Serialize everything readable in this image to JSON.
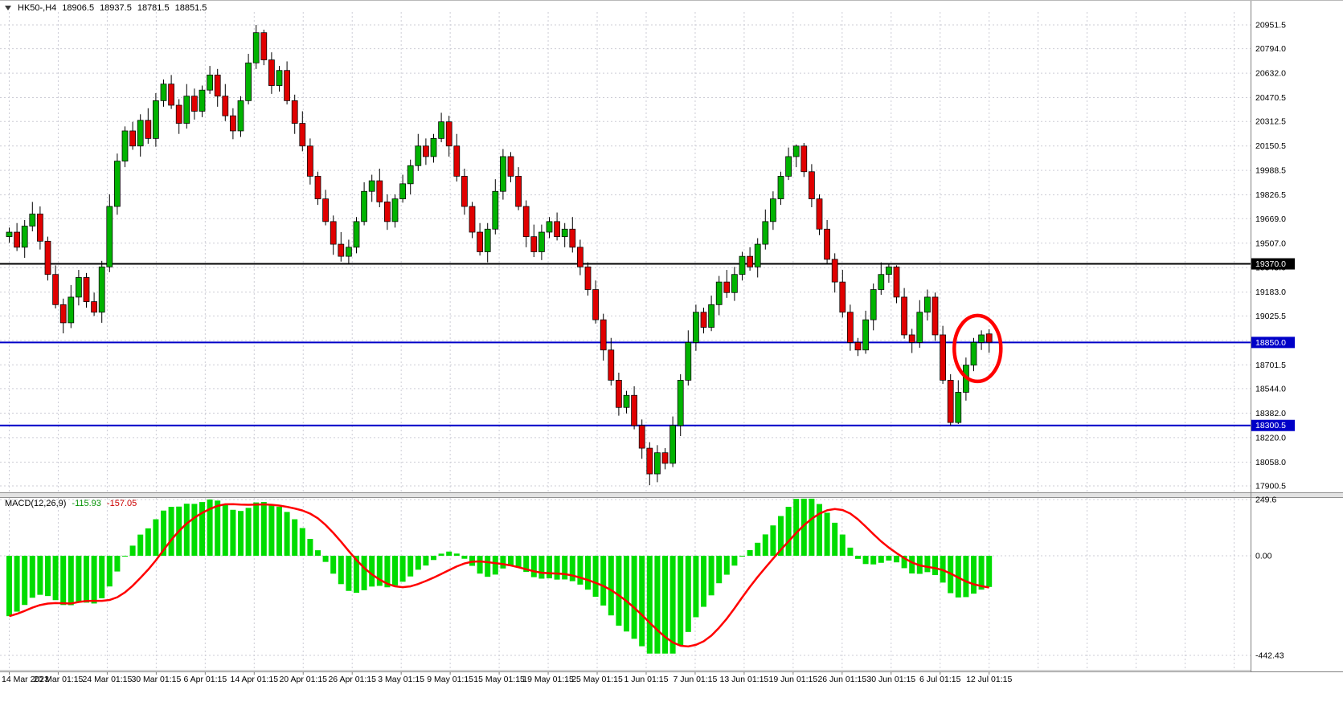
{
  "header": {
    "symbol_period": "HK50-,H4",
    "ohlc": {
      "open": "18906.5",
      "high": "18937.5",
      "low": "18781.5",
      "close": "18851.5"
    }
  },
  "price_scale": {
    "values": [
      20951.5,
      20794.0,
      20632.0,
      20470.5,
      20312.5,
      20150.5,
      19988.5,
      19826.5,
      19669.0,
      19507.0,
      19345.0,
      19183.0,
      19025.5,
      18863.5,
      18701.5,
      18544.0,
      18382.0,
      18220.0,
      18058.0,
      17900.5
    ]
  },
  "macd_panel": {
    "label": "MACD(12,26,9)",
    "main_value": "-115.93",
    "signal_value": "-157.05",
    "scale_labels": [
      "249.6",
      "0.00",
      "-442.43"
    ],
    "scale_values": [
      249.6,
      0,
      -442.43
    ]
  },
  "time_axis": {
    "labels": [
      "14 Mar 2023",
      "20 Mar 01:15",
      "24 Mar 01:15",
      "30 Mar 01:15",
      "6 Apr 01:15",
      "14 Apr 01:15",
      "20 Apr 01:15",
      "26 Apr 01:15",
      "3 May 01:15",
      "9 May 01:15",
      "15 May 01:15",
      "19 May 01:15",
      "25 May 01:15",
      "1 Jun 01:15",
      "7 Jun 01:15",
      "13 Jun 01:15",
      "19 Jun 01:15",
      "26 Jun 01:15",
      "30 Jun 01:15",
      "6 Jul 01:15",
      "12 Jul 01:15"
    ]
  },
  "chart_data": {
    "type": "candlestick",
    "symbol": "HK50-",
    "timeframe": "H4",
    "title": "HK50-,H4",
    "ylim": [
      17900.5,
      20951.5
    ],
    "grid": "dashed",
    "current_bar_ohlc": [
      18906.5,
      18937.5,
      18781.5,
      18851.5
    ],
    "candles": [
      [
        19550,
        19610,
        19510,
        19580
      ],
      [
        19580,
        19640,
        19455,
        19480
      ],
      [
        19480,
        19660,
        19410,
        19620
      ],
      [
        19620,
        19780,
        19585,
        19700
      ],
      [
        19700,
        19750,
        19465,
        19520
      ],
      [
        19520,
        19550,
        19260,
        19300
      ],
      [
        19300,
        19360,
        19075,
        19100
      ],
      [
        19100,
        19140,
        18910,
        18980
      ],
      [
        18980,
        19230,
        18945,
        19150
      ],
      [
        19150,
        19330,
        19095,
        19280
      ],
      [
        19280,
        19310,
        19080,
        19120
      ],
      [
        19120,
        19180,
        19025,
        19050
      ],
      [
        19050,
        19390,
        18980,
        19350
      ],
      [
        19350,
        19830,
        19315,
        19750
      ],
      [
        19750,
        20100,
        19695,
        20050
      ],
      [
        20050,
        20280,
        20010,
        20250
      ],
      [
        20250,
        20310,
        20125,
        20150
      ],
      [
        20150,
        20360,
        20080,
        20320
      ],
      [
        20320,
        20400,
        20165,
        20200
      ],
      [
        20200,
        20500,
        20145,
        20450
      ],
      [
        20450,
        20590,
        20410,
        20560
      ],
      [
        20560,
        20620,
        20395,
        20420
      ],
      [
        20420,
        20460,
        20230,
        20300
      ],
      [
        20300,
        20560,
        20265,
        20480
      ],
      [
        20480,
        20530,
        20325,
        20380
      ],
      [
        20380,
        20550,
        20340,
        20520
      ],
      [
        20520,
        20680,
        20495,
        20620
      ],
      [
        20620,
        20660,
        20410,
        20480
      ],
      [
        20480,
        20560,
        20315,
        20350
      ],
      [
        20350,
        20400,
        20195,
        20250
      ],
      [
        20250,
        20480,
        20210,
        20450
      ],
      [
        20450,
        20760,
        20425,
        20700
      ],
      [
        20700,
        20951,
        20660,
        20900
      ],
      [
        20900,
        20920,
        20685,
        20720
      ],
      [
        20720,
        20770,
        20495,
        20550
      ],
      [
        20550,
        20680,
        20510,
        20650
      ],
      [
        20650,
        20710,
        20425,
        20450
      ],
      [
        20450,
        20490,
        20230,
        20300
      ],
      [
        20300,
        20380,
        20115,
        20150
      ],
      [
        20150,
        20200,
        19895,
        19950
      ],
      [
        19950,
        19980,
        19760,
        19800
      ],
      [
        19800,
        19860,
        19625,
        19650
      ],
      [
        19650,
        19690,
        19430,
        19500
      ],
      [
        19500,
        19580,
        19385,
        19420
      ],
      [
        19420,
        19530,
        19365,
        19480
      ],
      [
        19480,
        19680,
        19440,
        19650
      ],
      [
        19650,
        19910,
        19625,
        19850
      ],
      [
        19850,
        19960,
        19780,
        19920
      ],
      [
        19920,
        20000,
        19745,
        19780
      ],
      [
        19780,
        19830,
        19595,
        19650
      ],
      [
        19650,
        19830,
        19610,
        19800
      ],
      [
        19800,
        19960,
        19775,
        19900
      ],
      [
        19900,
        20060,
        19830,
        20020
      ],
      [
        20020,
        20230,
        19985,
        20150
      ],
      [
        20150,
        20200,
        20025,
        20080
      ],
      [
        20080,
        20230,
        20040,
        20200
      ],
      [
        20200,
        20370,
        20175,
        20310
      ],
      [
        20310,
        20350,
        20080,
        20150
      ],
      [
        20150,
        20230,
        19915,
        19950
      ],
      [
        19950,
        20000,
        19695,
        19750
      ],
      [
        19750,
        19780,
        19540,
        19580
      ],
      [
        19580,
        19640,
        19425,
        19450
      ],
      [
        19450,
        19640,
        19380,
        19600
      ],
      [
        19600,
        19930,
        19565,
        19850
      ],
      [
        19850,
        20130,
        19795,
        20080
      ],
      [
        20080,
        20110,
        19910,
        19950
      ],
      [
        19950,
        20010,
        19725,
        19750
      ],
      [
        19750,
        19790,
        19480,
        19550
      ],
      [
        19550,
        19630,
        19415,
        19450
      ],
      [
        19450,
        19630,
        19395,
        19580
      ],
      [
        19580,
        19680,
        19540,
        19650
      ],
      [
        19650,
        19710,
        19525,
        19550
      ],
      [
        19550,
        19640,
        19480,
        19600
      ],
      [
        19600,
        19680,
        19445,
        19480
      ],
      [
        19480,
        19530,
        19295,
        19350
      ],
      [
        19350,
        19380,
        19160,
        19200
      ],
      [
        19200,
        19260,
        18975,
        19000
      ],
      [
        19000,
        19040,
        18730,
        18800
      ],
      [
        18800,
        18880,
        18565,
        18600
      ],
      [
        18600,
        18650,
        18365,
        18420
      ],
      [
        18420,
        18530,
        18380,
        18500
      ],
      [
        18500,
        18560,
        18275,
        18300
      ],
      [
        18300,
        18340,
        18080,
        18150
      ],
      [
        18150,
        18190,
        17905,
        17980
      ],
      [
        17980,
        18170,
        17925,
        18120
      ],
      [
        18120,
        18150,
        18010,
        18050
      ],
      [
        18050,
        18360,
        18025,
        18300
      ],
      [
        18300,
        18640,
        18230,
        18600
      ],
      [
        18600,
        18930,
        18565,
        18850
      ],
      [
        18850,
        19100,
        18795,
        19050
      ],
      [
        19050,
        19080,
        18910,
        18950
      ],
      [
        18950,
        19160,
        18925,
        19100
      ],
      [
        19100,
        19290,
        19030,
        19250
      ],
      [
        19250,
        19330,
        19145,
        19180
      ],
      [
        19180,
        19350,
        19125,
        19300
      ],
      [
        19300,
        19450,
        19260,
        19420
      ],
      [
        19420,
        19480,
        19325,
        19350
      ],
      [
        19350,
        19540,
        19280,
        19500
      ],
      [
        19500,
        19730,
        19465,
        19650
      ],
      [
        19650,
        19850,
        19595,
        19800
      ],
      [
        19800,
        19980,
        19760,
        19950
      ],
      [
        19950,
        20140,
        19925,
        20080
      ],
      [
        20080,
        20160,
        20010,
        20150
      ],
      [
        20150,
        20170,
        19945,
        19980
      ],
      [
        19980,
        20030,
        19745,
        19800
      ],
      [
        19800,
        19830,
        19560,
        19600
      ],
      [
        19600,
        19660,
        19375,
        19400
      ],
      [
        19400,
        19440,
        19180,
        19250
      ],
      [
        19250,
        19330,
        19015,
        19050
      ],
      [
        19050,
        19100,
        18795,
        18850
      ],
      [
        18850,
        18880,
        18760,
        18800
      ],
      [
        18800,
        19060,
        18775,
        19000
      ],
      [
        19000,
        19240,
        18930,
        19200
      ],
      [
        19200,
        19380,
        19165,
        19300
      ],
      [
        19300,
        19370,
        19245,
        19350
      ],
      [
        19350,
        19360,
        19110,
        19150
      ],
      [
        19150,
        19210,
        18875,
        18900
      ],
      [
        18900,
        18940,
        18780,
        18850
      ],
      [
        18850,
        19130,
        18815,
        19050
      ],
      [
        19050,
        19200,
        18995,
        19150
      ],
      [
        19150,
        19180,
        18860,
        18900
      ],
      [
        18900,
        18960,
        18575,
        18600
      ],
      [
        18600,
        18640,
        18300,
        18320
      ],
      [
        18320,
        18600,
        18310,
        18520
      ],
      [
        18520,
        18750,
        18465,
        18700
      ],
      [
        18700,
        18880,
        18660,
        18850
      ],
      [
        18850,
        18930,
        18800,
        18900
      ],
      [
        18906.5,
        18937.5,
        18781.5,
        18851.5
      ]
    ],
    "levels": [
      {
        "price": 19370.0,
        "label": "19370.0",
        "color": "#000000"
      },
      {
        "price": 18850.0,
        "label": "18850.0",
        "color": "#0000C8"
      },
      {
        "price": 18300.5,
        "label": "18300.5",
        "color": "#0000C8"
      }
    ],
    "annotation": {
      "type": "ellipse",
      "center_bar": 125.5,
      "center_price": 18810,
      "color": "#ff0000"
    },
    "indicator": {
      "type": "macd_histogram",
      "name": "MACD",
      "params": [
        12,
        26,
        9
      ],
      "current_main": -115.93,
      "current_signal": -157.05,
      "ylim": [
        -442.43,
        249.6
      ],
      "derived_from": "candles"
    },
    "colors": {
      "candle_up": "#00B300",
      "candle_down": "#E00000",
      "candle_outline": "#000000",
      "histogram": "#00DC00",
      "signal_line": "#FF0000",
      "grid": "#CDCDD6",
      "axis_text": "#000000",
      "level_blue": "#0000C8",
      "tag_text": "#FFFFFF"
    }
  }
}
